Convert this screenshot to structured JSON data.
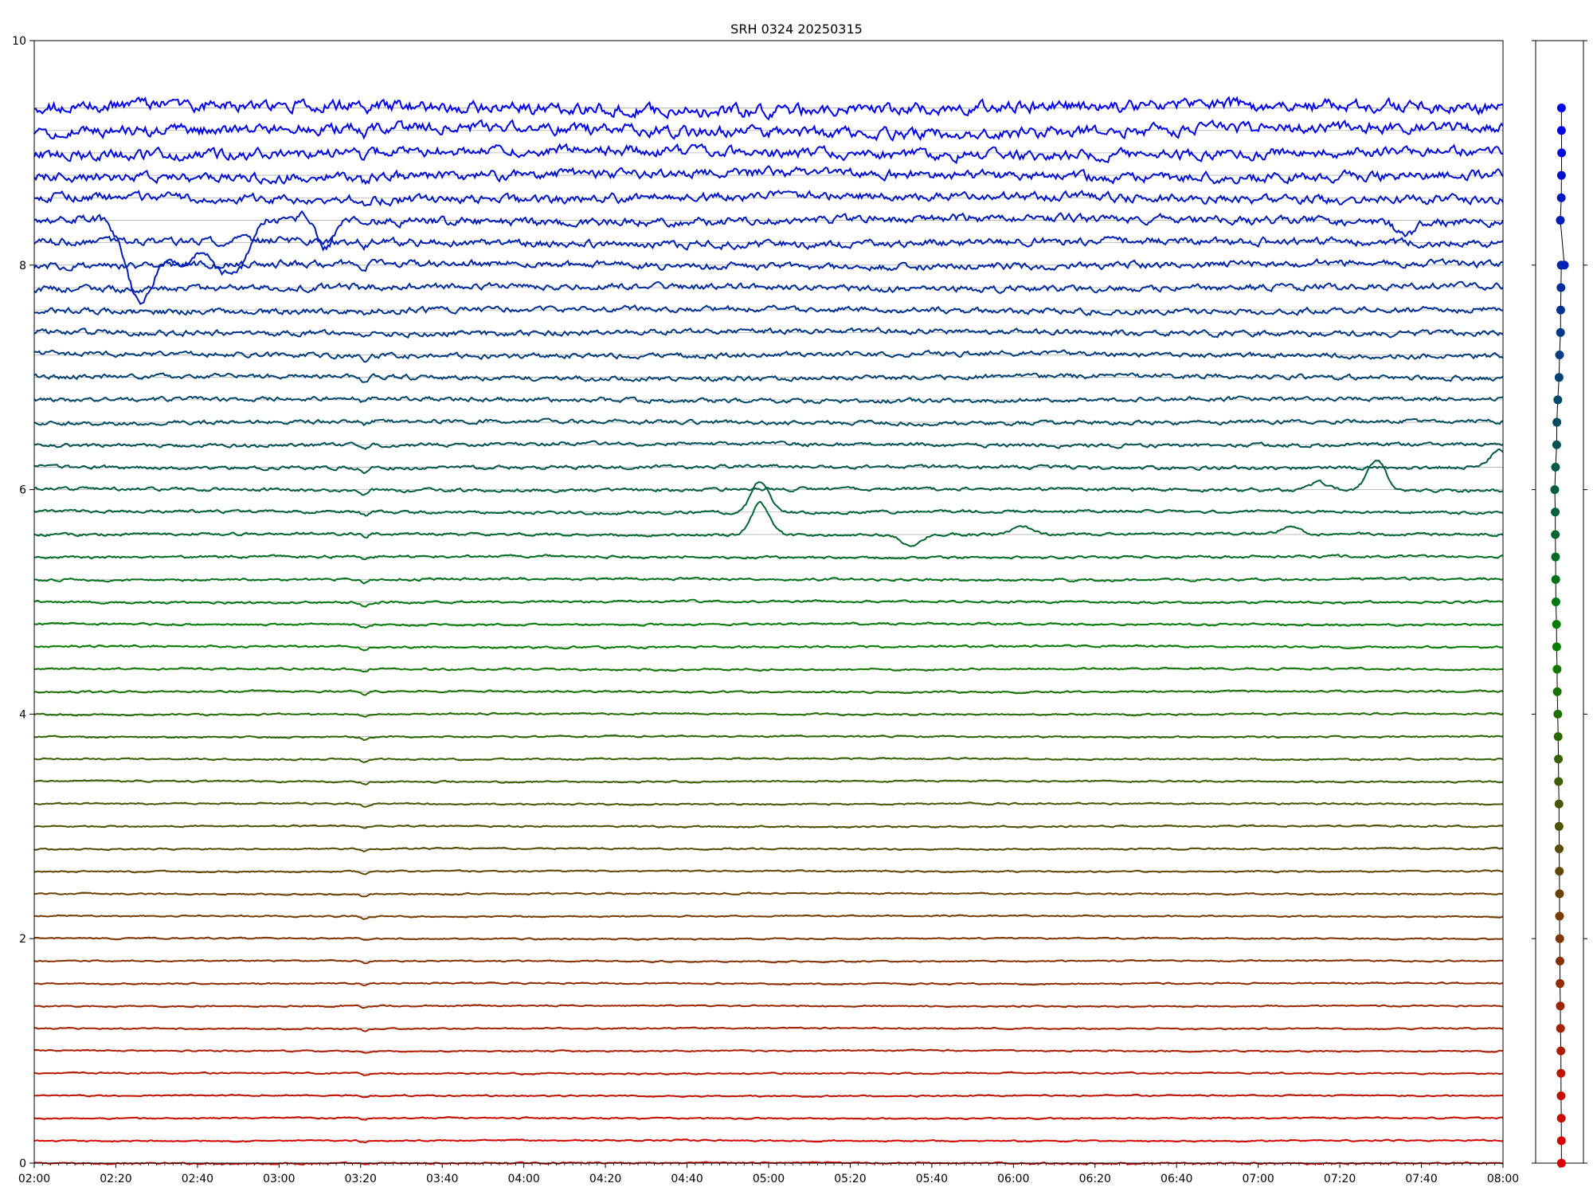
{
  "chart_data": [
    {
      "type": "line",
      "title": "SRH 0324 20250315",
      "xlabel": "",
      "ylabel": "",
      "xlim": [
        "02:00",
        "08:00"
      ],
      "ylim": [
        0,
        10
      ],
      "x_tick_labels": [
        "02:00",
        "02:20",
        "02:40",
        "03:00",
        "03:20",
        "03:40",
        "04:00",
        "04:20",
        "04:40",
        "05:00",
        "05:20",
        "05:40",
        "06:00",
        "06:20",
        "06:40",
        "07:00",
        "07:20",
        "07:40",
        "08:00"
      ],
      "y_ticks": [
        0,
        2,
        4,
        6,
        8,
        10
      ],
      "y_tick_labels": [
        "0",
        "2",
        "4",
        "6",
        "8",
        "10"
      ],
      "grid": "horizontal lines at each channel baseline",
      "legend": "none",
      "color_gradient": {
        "low": "#dd0000",
        "mid": "#008000",
        "high": "#0000ee"
      },
      "channel_count": 48,
      "channel_baselines": [
        0.0,
        0.2,
        0.4,
        0.6,
        0.8,
        1.0,
        1.2,
        1.4,
        1.6,
        1.8,
        2.0,
        2.2,
        2.4,
        2.6,
        2.8,
        3.0,
        3.2,
        3.4,
        3.6,
        3.8,
        4.0,
        4.2,
        4.4,
        4.6,
        4.8,
        5.0,
        5.2,
        5.4,
        5.6,
        5.8,
        6.0,
        6.2,
        6.4,
        6.6,
        6.8,
        7.0,
        7.2,
        7.4,
        7.6,
        7.8,
        8.0,
        8.2,
        8.4,
        8.6,
        8.8,
        9.0,
        9.2,
        9.4
      ],
      "common_dip_time": "03:21",
      "events": [
        {
          "channel_index": 42,
          "time": "02:26",
          "amplitude": -0.75
        },
        {
          "channel_index": 42,
          "time": "02:36",
          "amplitude": -0.4
        },
        {
          "channel_index": 42,
          "time": "02:46",
          "amplitude": -0.45
        },
        {
          "channel_index": 42,
          "time": "02:51",
          "amplitude": -0.25
        },
        {
          "channel_index": 42,
          "time": "03:08",
          "amplitude": 0.1
        },
        {
          "channel_index": 42,
          "time": "03:11",
          "amplitude": -0.28
        },
        {
          "channel_index": 42,
          "time": "07:36",
          "amplitude": -0.12
        },
        {
          "channel_index": 29,
          "time": "04:58",
          "amplitude": 0.28
        },
        {
          "channel_index": 28,
          "time": "04:58",
          "amplitude": 0.28
        },
        {
          "channel_index": 30,
          "time": "07:29",
          "amplitude": 0.27
        },
        {
          "channel_index": 31,
          "time": "07:59",
          "amplitude": 0.15
        },
        {
          "channel_index": 28,
          "time": "05:35",
          "amplitude": -0.1
        },
        {
          "channel_index": 28,
          "time": "06:02",
          "amplitude": 0.08
        },
        {
          "channel_index": 28,
          "time": "07:08",
          "amplitude": 0.07
        },
        {
          "channel_index": 30,
          "time": "07:15",
          "amplitude": 0.07
        }
      ]
    },
    {
      "type": "scatter",
      "title": "",
      "xlabel": "",
      "ylabel": "",
      "ylim": [
        0,
        10
      ],
      "x_tick_labels": [],
      "points": [
        {
          "x": 0.2,
          "y": 0.0
        },
        {
          "x": 0.19,
          "y": 0.2
        },
        {
          "x": 0.18,
          "y": 0.4
        },
        {
          "x": 0.16,
          "y": 0.6
        },
        {
          "x": 0.15,
          "y": 0.8
        },
        {
          "x": 0.14,
          "y": 1.0
        },
        {
          "x": 0.1,
          "y": 1.2
        },
        {
          "x": 0.08,
          "y": 1.4
        },
        {
          "x": 0.05,
          "y": 1.6
        },
        {
          "x": 0.04,
          "y": 1.8
        },
        {
          "x": 0.02,
          "y": 2.0
        },
        {
          "x": 0.0,
          "y": 2.2
        },
        {
          "x": 0.0,
          "y": 2.4
        },
        {
          "x": -0.02,
          "y": 2.6
        },
        {
          "x": -0.04,
          "y": 2.8
        },
        {
          "x": -0.05,
          "y": 3.0
        },
        {
          "x": -0.06,
          "y": 3.2
        },
        {
          "x": -0.1,
          "y": 3.4
        },
        {
          "x": -0.12,
          "y": 3.6
        },
        {
          "x": -0.15,
          "y": 3.8
        },
        {
          "x": -0.18,
          "y": 4.0
        },
        {
          "x": -0.24,
          "y": 4.2
        },
        {
          "x": -0.26,
          "y": 4.4
        },
        {
          "x": -0.3,
          "y": 4.6
        },
        {
          "x": -0.32,
          "y": 4.8
        },
        {
          "x": -0.38,
          "y": 5.0
        },
        {
          "x": -0.4,
          "y": 5.2
        },
        {
          "x": -0.42,
          "y": 5.4
        },
        {
          "x": -0.44,
          "y": 5.6
        },
        {
          "x": -0.45,
          "y": 5.8
        },
        {
          "x": -0.5,
          "y": 6.0
        },
        {
          "x": -0.42,
          "y": 6.2
        },
        {
          "x": -0.3,
          "y": 6.4
        },
        {
          "x": -0.28,
          "y": 6.6
        },
        {
          "x": -0.18,
          "y": 6.8
        },
        {
          "x": -0.05,
          "y": 7.0
        },
        {
          "x": 0.0,
          "y": 7.2
        },
        {
          "x": 0.1,
          "y": 7.4
        },
        {
          "x": 0.12,
          "y": 7.6
        },
        {
          "x": 0.15,
          "y": 7.8
        },
        {
          "x": 0.18,
          "y": 8.0
        },
        {
          "x": 0.5,
          "y": 8.0
        },
        {
          "x": 0.08,
          "y": 8.4
        },
        {
          "x": 0.18,
          "y": 8.6
        },
        {
          "x": 0.2,
          "y": 8.8
        },
        {
          "x": 0.22,
          "y": 9.0
        },
        {
          "x": 0.2,
          "y": 9.2
        },
        {
          "x": 0.2,
          "y": 9.4
        }
      ]
    }
  ]
}
